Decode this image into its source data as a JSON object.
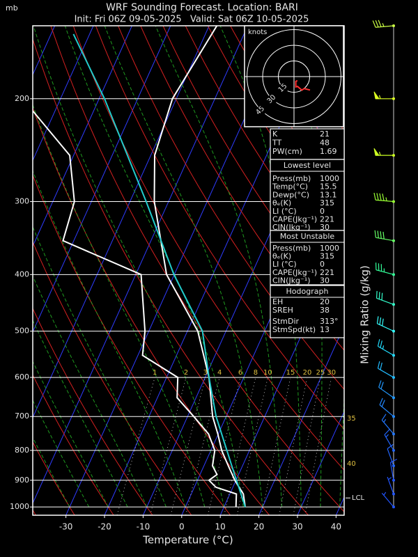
{
  "chart_data": {
    "type": "skewt",
    "title": "WRF Sounding Forecast. Location: BARI",
    "subtitle": "Init: Fri 06Z 09-05-2025   Valid: Sat 06Z 10-05-2025",
    "y_unit": "mb",
    "xlabel": "Temperature (°C)",
    "y2label": "Mixing Ratio (g/kg)",
    "xlim": [
      -38.6,
      42.1
    ],
    "xticks": [
      -30,
      -20,
      -10,
      0,
      10,
      20,
      30,
      40
    ],
    "ylim": [
      1033,
      150
    ],
    "yticks": [
      200,
      300,
      400,
      500,
      600,
      700,
      800,
      900,
      1000
    ],
    "log_y": true,
    "grid": true,
    "series": [
      {
        "color": "#ffffff",
        "pressure": [
          1000,
          950,
          925,
          900,
          850,
          800,
          750,
          700,
          600,
          500,
          400,
          300,
          250,
          200,
          150
        ],
        "temperature": [
          15.5,
          13.5,
          11.6,
          9.7,
          6.3,
          2.8,
          -0.1,
          -3.5,
          -9.0,
          -17.3,
          -32.0,
          -43.7,
          -49.0,
          -51.0,
          -48.0
        ]
      },
      {
        "color": "#ffffff",
        "pressure": [
          1000,
          950,
          925,
          900,
          880,
          850,
          800,
          750,
          700,
          650,
          600,
          550,
          500,
          400,
          350,
          300,
          250,
          210
        ],
        "temperature": [
          13.1,
          11.7,
          5.6,
          3.0,
          4.4,
          2.2,
          1.0,
          -2.5,
          -8.4,
          -14.9,
          -17.1,
          -28.8,
          -31.0,
          -38.6,
          -62.8,
          -64.4,
          -71.0,
          -85.7
        ]
      },
      {
        "color": "#22cccc",
        "pressure": [
          1000,
          850,
          700,
          600,
          500,
          400,
          300,
          200,
          155
        ],
        "temperature": [
          15.5,
          7.2,
          -2.6,
          -9.0,
          -16.1,
          -30.1,
          -45.8,
          -68.6,
          -84.2
        ]
      }
    ],
    "mixing_ratios": [
      1,
      2,
      3,
      4,
      6,
      8,
      10,
      15,
      20,
      25,
      30
    ],
    "adiabat_labels": [
      35,
      40
    ],
    "lcl": {
      "label": "LCL",
      "pressure": 965
    },
    "winds": {
      "pressure": [
        150,
        200,
        250,
        300,
        350,
        400,
        450,
        500,
        550,
        600,
        650,
        700,
        750,
        800,
        850,
        900,
        950,
        1000
      ],
      "direction": [
        265,
        270,
        270,
        275,
        280,
        285,
        290,
        295,
        300,
        300,
        305,
        310,
        320,
        330,
        340,
        350,
        340,
        320
      ],
      "speed": [
        35,
        55,
        55,
        45,
        40,
        35,
        30,
        30,
        25,
        20,
        20,
        20,
        15,
        15,
        10,
        10,
        5,
        5
      ],
      "colors": [
        "#ccff44",
        "#ddff22",
        "#ccff22",
        "#99ff33",
        "#66ff66",
        "#33ff99",
        "#33ffcc",
        "#33ffff",
        "#22ddff",
        "#22bbff",
        "#2299ff",
        "#2288ff",
        "#2277ff",
        "#2266ff",
        "#2266ff",
        "#2255ff",
        "#2255ff",
        "#2255ff"
      ]
    },
    "hodograph": {
      "title": "knots",
      "rings": [
        15,
        30,
        45
      ]
    },
    "indices": [
      [
        "K",
        "21"
      ],
      [
        "TT",
        "48"
      ],
      [
        "PW(cm)",
        "1.69"
      ]
    ],
    "lowest_level": {
      "title": "Lowest level",
      "rows": [
        [
          "Press(mb)",
          "1000"
        ],
        [
          "Temp(°C)",
          "15.5"
        ],
        [
          "Dewp(°C)",
          "13.1"
        ],
        [
          "θₑ(K)",
          "315"
        ],
        [
          "LI (°C)",
          "0"
        ],
        [
          "CAPE(Jkg⁻¹)",
          "221"
        ],
        [
          "CIN(Jkg⁻¹)",
          "30"
        ]
      ]
    },
    "most_unstable": {
      "title": "Most Unstable",
      "rows": [
        [
          "Press(mb)",
          "1000"
        ],
        [
          "θₑ(K)",
          "315"
        ],
        [
          "LI (°C)",
          "0"
        ],
        [
          "CAPE(Jkg⁻¹)",
          "221"
        ],
        [
          "CIN(Jkg⁻¹)",
          "30"
        ]
      ]
    },
    "hodograph_params": {
      "title": "Hodograph",
      "rows": [
        [
          "EH",
          "20"
        ],
        [
          "SREH",
          "38"
        ],
        [
          "StmDir",
          "313°"
        ],
        [
          "StmSpd(kt)",
          "13"
        ]
      ]
    }
  }
}
